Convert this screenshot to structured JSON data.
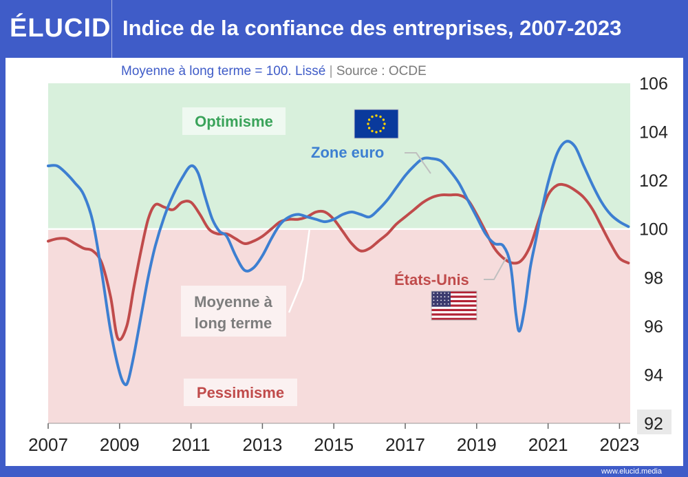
{
  "header": {
    "logo": "ÉLUCID",
    "title": "Indice de la confiance des entreprises, 2007-2023"
  },
  "footer": {
    "url": "www.elucid.media"
  },
  "colors": {
    "euro": "#3d7fd1",
    "us": "#c04b4b",
    "optimism_bg": "#d8f0dc",
    "pessimism_bg": "#f6dcdc",
    "optimism_text": "#3aa35a",
    "pessimism_text": "#c04b4b",
    "brand": "#3f5cc8"
  },
  "chart_data": {
    "type": "line",
    "subtitle": "Moyenne à long terme = 100. Lissé",
    "source": "Source : OCDE",
    "xlim": [
      2007,
      2023.3
    ],
    "ylim": [
      92,
      106
    ],
    "x_ticks": [
      "2007",
      "2009",
      "2011",
      "2013",
      "2015",
      "2017",
      "2019",
      "2021",
      "2023"
    ],
    "y_ticks": [
      "106",
      "104",
      "102",
      "100",
      "98",
      "96",
      "94",
      "92"
    ],
    "baseline": 100,
    "zones": {
      "optimism": "Optimisme",
      "pessimism": "Pessimisme"
    },
    "baseline_label": [
      "Moyenne à",
      "long terme"
    ],
    "series": [
      {
        "name": "Zone euro",
        "x": [
          2007.0,
          2007.25,
          2007.5,
          2007.75,
          2008.0,
          2008.25,
          2008.5,
          2008.75,
          2009.0,
          2009.15,
          2009.25,
          2009.4,
          2009.6,
          2009.8,
          2010.0,
          2010.25,
          2010.5,
          2010.75,
          2011.0,
          2011.2,
          2011.4,
          2011.6,
          2011.8,
          2012.0,
          2012.25,
          2012.5,
          2012.75,
          2013.0,
          2013.25,
          2013.5,
          2013.75,
          2014.0,
          2014.25,
          2014.5,
          2014.75,
          2015.0,
          2015.25,
          2015.5,
          2015.75,
          2016.0,
          2016.25,
          2016.5,
          2016.75,
          2017.0,
          2017.25,
          2017.5,
          2017.75,
          2018.0,
          2018.25,
          2018.5,
          2018.75,
          2019.0,
          2019.25,
          2019.5,
          2019.75,
          2019.95,
          2020.1,
          2020.2,
          2020.35,
          2020.5,
          2020.65,
          2020.8,
          2021.0,
          2021.25,
          2021.5,
          2021.75,
          2022.0,
          2022.25,
          2022.5,
          2022.75,
          2023.0,
          2023.25
        ],
        "y": [
          102.6,
          102.6,
          102.3,
          101.9,
          101.4,
          100.3,
          98.2,
          95.8,
          94.1,
          93.6,
          93.8,
          94.8,
          96.4,
          98.0,
          99.3,
          100.5,
          101.4,
          102.1,
          102.6,
          102.3,
          101.3,
          100.4,
          99.9,
          99.7,
          98.9,
          98.3,
          98.4,
          98.9,
          99.6,
          100.2,
          100.5,
          100.6,
          100.5,
          100.4,
          100.3,
          100.4,
          100.6,
          100.7,
          100.6,
          100.5,
          100.8,
          101.2,
          101.7,
          102.2,
          102.6,
          102.9,
          102.9,
          102.8,
          102.4,
          101.9,
          101.2,
          100.5,
          99.8,
          99.4,
          99.3,
          98.5,
          96.5,
          95.8,
          96.8,
          98.4,
          99.5,
          100.6,
          101.9,
          103.1,
          103.6,
          103.4,
          102.6,
          101.8,
          101.1,
          100.6,
          100.3,
          100.1
        ]
      },
      {
        "name": "États-Unis",
        "x": [
          2007.0,
          2007.25,
          2007.5,
          2007.75,
          2008.0,
          2008.25,
          2008.5,
          2008.75,
          2008.95,
          2009.2,
          2009.4,
          2009.6,
          2009.8,
          2010.0,
          2010.25,
          2010.5,
          2010.75,
          2011.0,
          2011.25,
          2011.5,
          2011.75,
          2012.0,
          2012.25,
          2012.5,
          2012.75,
          2013.0,
          2013.25,
          2013.5,
          2013.75,
          2014.0,
          2014.25,
          2014.5,
          2014.75,
          2015.0,
          2015.25,
          2015.5,
          2015.75,
          2016.0,
          2016.25,
          2016.5,
          2016.75,
          2017.0,
          2017.25,
          2017.5,
          2017.75,
          2018.0,
          2018.25,
          2018.5,
          2018.75,
          2019.0,
          2019.25,
          2019.5,
          2019.75,
          2020.0,
          2020.25,
          2020.5,
          2020.75,
          2021.0,
          2021.25,
          2021.5,
          2021.75,
          2022.0,
          2022.25,
          2022.5,
          2022.75,
          2023.0,
          2023.25
        ],
        "y": [
          99.5,
          99.6,
          99.6,
          99.4,
          99.2,
          99.1,
          98.6,
          97.2,
          95.5,
          96.0,
          97.6,
          99.1,
          100.4,
          101.0,
          100.9,
          100.8,
          101.1,
          101.1,
          100.6,
          100.0,
          99.8,
          99.8,
          99.6,
          99.4,
          99.5,
          99.7,
          100.0,
          100.3,
          100.4,
          100.4,
          100.5,
          100.7,
          100.7,
          100.4,
          99.9,
          99.4,
          99.1,
          99.2,
          99.5,
          99.8,
          100.2,
          100.5,
          100.8,
          101.1,
          101.3,
          101.4,
          101.4,
          101.4,
          101.2,
          100.6,
          99.9,
          99.2,
          98.8,
          98.6,
          98.7,
          99.3,
          100.4,
          101.4,
          101.8,
          101.8,
          101.6,
          101.3,
          100.8,
          100.1,
          99.4,
          98.8,
          98.6
        ]
      }
    ]
  }
}
